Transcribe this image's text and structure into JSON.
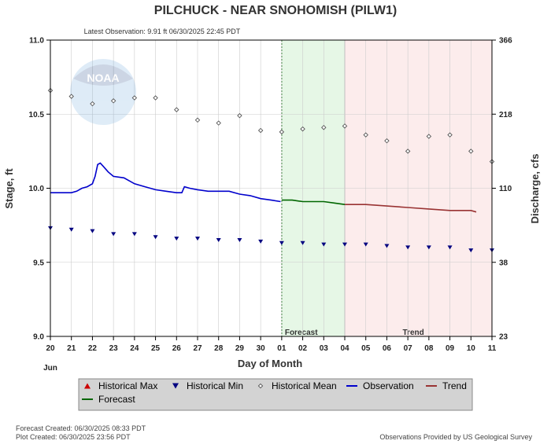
{
  "title": "PILCHUCK - NEAR SNOHOMISH  (PILW1)",
  "latest_observation": "Latest Observation: 9.91 ft 06/30/2025 22:45 PDT",
  "logo_text": "NOAA",
  "footer": {
    "forecast_created": "Forecast Created: 06/30/2025 08:33 PDT",
    "plot_created": "Plot Created: 06/30/2025 23:56 PDT",
    "provided_by": "Observations Provided by US Geological Survey"
  },
  "regions": {
    "forecast_label": "Forecast",
    "trend_label": "Trend"
  },
  "colors": {
    "observation": "#0000cc",
    "forecast": "#006600",
    "trend": "#993333",
    "historical_max": "#cc0000",
    "historical_min": "#000080",
    "historical_mean": "#555555",
    "forecast_region": "#e6f7e6",
    "trend_region": "#fcecec",
    "legend_bg": "#d3d3d3"
  },
  "legend": [
    {
      "key": "historical_max",
      "label": "Historical Max",
      "symbol": "triangle-up"
    },
    {
      "key": "historical_min",
      "label": "Historical Min",
      "symbol": "triangle-down"
    },
    {
      "key": "historical_mean",
      "label": "Historical Mean",
      "symbol": "diamond"
    },
    {
      "key": "observation",
      "label": "Observation",
      "symbol": "line"
    },
    {
      "key": "trend",
      "label": "Trend",
      "symbol": "line"
    },
    {
      "key": "forecast",
      "label": "Forecast",
      "symbol": "line"
    }
  ],
  "chart_data": {
    "type": "line",
    "xlabel": "Day of Month",
    "ylabel_left": "Stage, ft",
    "ylabel_right": "Discharge, cfs",
    "month_label": "Jun",
    "x_tick_labels": [
      "20",
      "21",
      "22",
      "23",
      "24",
      "25",
      "26",
      "27",
      "28",
      "29",
      "30",
      "01",
      "02",
      "03",
      "04",
      "05",
      "06",
      "07",
      "08",
      "09",
      "10",
      "11"
    ],
    "xlim": [
      "2025-06-20",
      "2025-07-11"
    ],
    "ylim": [
      9.0,
      11.0
    ],
    "y_ticks": [
      "9.0",
      "9.5",
      "10.0",
      "10.5",
      "11.0"
    ],
    "y_right_ticks": [
      {
        "stage": 9.0,
        "label": "23"
      },
      {
        "stage": 9.5,
        "label": "38"
      },
      {
        "stage": 10.0,
        "label": "110"
      },
      {
        "stage": 10.5,
        "label": "218"
      },
      {
        "stage": 11.0,
        "label": "366"
      }
    ],
    "forecast_region": [
      "2025-07-01",
      "2025-07-04"
    ],
    "trend_region": [
      "2025-07-04",
      "2025-07-11"
    ],
    "series": [
      {
        "name": "Observation",
        "key": "observation",
        "points": [
          [
            "2025-06-20 00:00",
            9.97
          ],
          [
            "2025-06-20 12:00",
            9.97
          ],
          [
            "2025-06-21 00:00",
            9.97
          ],
          [
            "2025-06-21 06:00",
            9.98
          ],
          [
            "2025-06-21 12:00",
            10.0
          ],
          [
            "2025-06-21 18:00",
            10.01
          ],
          [
            "2025-06-22 00:00",
            10.03
          ],
          [
            "2025-06-22 03:00",
            10.08
          ],
          [
            "2025-06-22 06:00",
            10.16
          ],
          [
            "2025-06-22 09:00",
            10.17
          ],
          [
            "2025-06-22 12:00",
            10.15
          ],
          [
            "2025-06-22 18:00",
            10.11
          ],
          [
            "2025-06-23 00:00",
            10.08
          ],
          [
            "2025-06-23 12:00",
            10.07
          ],
          [
            "2025-06-24 00:00",
            10.03
          ],
          [
            "2025-06-24 12:00",
            10.01
          ],
          [
            "2025-06-25 00:00",
            9.99
          ],
          [
            "2025-06-25 12:00",
            9.98
          ],
          [
            "2025-06-26 00:00",
            9.97
          ],
          [
            "2025-06-26 06:00",
            9.97
          ],
          [
            "2025-06-26 09:00",
            10.01
          ],
          [
            "2025-06-26 15:00",
            10.0
          ],
          [
            "2025-06-27 00:00",
            9.99
          ],
          [
            "2025-06-27 12:00",
            9.98
          ],
          [
            "2025-06-28 00:00",
            9.98
          ],
          [
            "2025-06-28 12:00",
            9.98
          ],
          [
            "2025-06-29 00:00",
            9.96
          ],
          [
            "2025-06-29 12:00",
            9.95
          ],
          [
            "2025-06-30 00:00",
            9.93
          ],
          [
            "2025-06-30 12:00",
            9.92
          ],
          [
            "2025-06-30 22:45",
            9.91
          ]
        ]
      },
      {
        "name": "Forecast",
        "key": "forecast",
        "points": [
          [
            "2025-07-01 00:00",
            9.92
          ],
          [
            "2025-07-01 12:00",
            9.92
          ],
          [
            "2025-07-02 00:00",
            9.91
          ],
          [
            "2025-07-02 12:00",
            9.91
          ],
          [
            "2025-07-03 00:00",
            9.91
          ],
          [
            "2025-07-03 12:00",
            9.9
          ],
          [
            "2025-07-04 00:00",
            9.89
          ]
        ]
      },
      {
        "name": "Trend",
        "key": "trend",
        "points": [
          [
            "2025-07-04 00:00",
            9.89
          ],
          [
            "2025-07-05 00:00",
            9.89
          ],
          [
            "2025-07-06 00:00",
            9.88
          ],
          [
            "2025-07-07 00:00",
            9.87
          ],
          [
            "2025-07-08 00:00",
            9.86
          ],
          [
            "2025-07-09 00:00",
            9.85
          ],
          [
            "2025-07-10 00:00",
            9.85
          ],
          [
            "2025-07-10 06:00",
            9.84
          ]
        ]
      },
      {
        "name": "Historical Mean",
        "key": "historical_mean",
        "points": [
          [
            "2025-06-20",
            10.66
          ],
          [
            "2025-06-21",
            10.62
          ],
          [
            "2025-06-22",
            10.57
          ],
          [
            "2025-06-23",
            10.59
          ],
          [
            "2025-06-24",
            10.61
          ],
          [
            "2025-06-25",
            10.61
          ],
          [
            "2025-06-26",
            10.53
          ],
          [
            "2025-06-27",
            10.46
          ],
          [
            "2025-06-28",
            10.44
          ],
          [
            "2025-06-29",
            10.49
          ],
          [
            "2025-06-30",
            10.39
          ],
          [
            "2025-07-01",
            10.38
          ],
          [
            "2025-07-02",
            10.4
          ],
          [
            "2025-07-03",
            10.41
          ],
          [
            "2025-07-04",
            10.42
          ],
          [
            "2025-07-05",
            10.36
          ],
          [
            "2025-07-06",
            10.32
          ],
          [
            "2025-07-07",
            10.25
          ],
          [
            "2025-07-08",
            10.35
          ],
          [
            "2025-07-09",
            10.36
          ],
          [
            "2025-07-10",
            10.25
          ],
          [
            "2025-07-11",
            10.18
          ]
        ]
      },
      {
        "name": "Historical Min",
        "key": "historical_min",
        "points": [
          [
            "2025-06-20",
            9.73
          ],
          [
            "2025-06-21",
            9.72
          ],
          [
            "2025-06-22",
            9.71
          ],
          [
            "2025-06-23",
            9.69
          ],
          [
            "2025-06-24",
            9.69
          ],
          [
            "2025-06-25",
            9.67
          ],
          [
            "2025-06-26",
            9.66
          ],
          [
            "2025-06-27",
            9.66
          ],
          [
            "2025-06-28",
            9.65
          ],
          [
            "2025-06-29",
            9.65
          ],
          [
            "2025-06-30",
            9.64
          ],
          [
            "2025-07-01",
            9.63
          ],
          [
            "2025-07-02",
            9.63
          ],
          [
            "2025-07-03",
            9.62
          ],
          [
            "2025-07-04",
            9.62
          ],
          [
            "2025-07-05",
            9.62
          ],
          [
            "2025-07-06",
            9.61
          ],
          [
            "2025-07-07",
            9.6
          ],
          [
            "2025-07-08",
            9.6
          ],
          [
            "2025-07-09",
            9.6
          ],
          [
            "2025-07-10",
            9.58
          ],
          [
            "2025-07-11",
            9.58
          ]
        ]
      },
      {
        "name": "Historical Max",
        "key": "historical_max",
        "points": []
      }
    ]
  }
}
